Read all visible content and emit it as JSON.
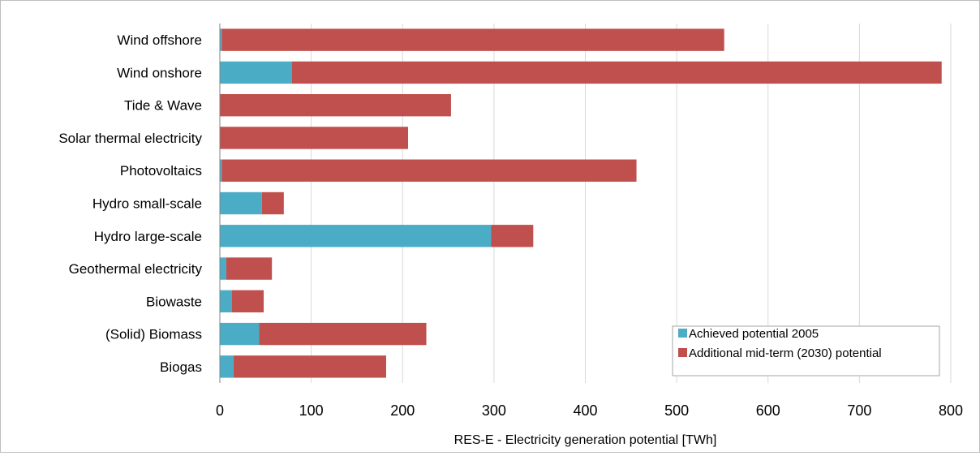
{
  "chart_data": {
    "type": "bar",
    "orientation": "horizontal",
    "stacked": true,
    "title": "",
    "xlabel": "RES-E - Electricity generation potential [TWh]",
    "ylabel": "",
    "xlim": [
      0,
      800
    ],
    "xticks": [
      0,
      100,
      200,
      300,
      400,
      500,
      600,
      700,
      800
    ],
    "grid": true,
    "legend_position": "bottom-right",
    "categories": [
      "Wind offshore",
      "Wind onshore",
      "Tide & Wave",
      "Solar thermal electricity",
      "Photovoltaics",
      "Hydro small-scale",
      "Hydro large-scale",
      "Geothermal electricity",
      "Biowaste",
      "(Solid) Biomass",
      "Biogas"
    ],
    "series": [
      {
        "name": "Achieved potential 2005",
        "color": "#4bacc6",
        "values": [
          2,
          79,
          0,
          0,
          2,
          46,
          297,
          7,
          13,
          43,
          15
        ]
      },
      {
        "name": "Additional mid-term (2030) potential",
        "color": "#c0504d",
        "values": [
          550,
          711,
          253,
          206,
          454,
          24,
          46,
          50,
          35,
          183,
          167
        ]
      }
    ]
  }
}
